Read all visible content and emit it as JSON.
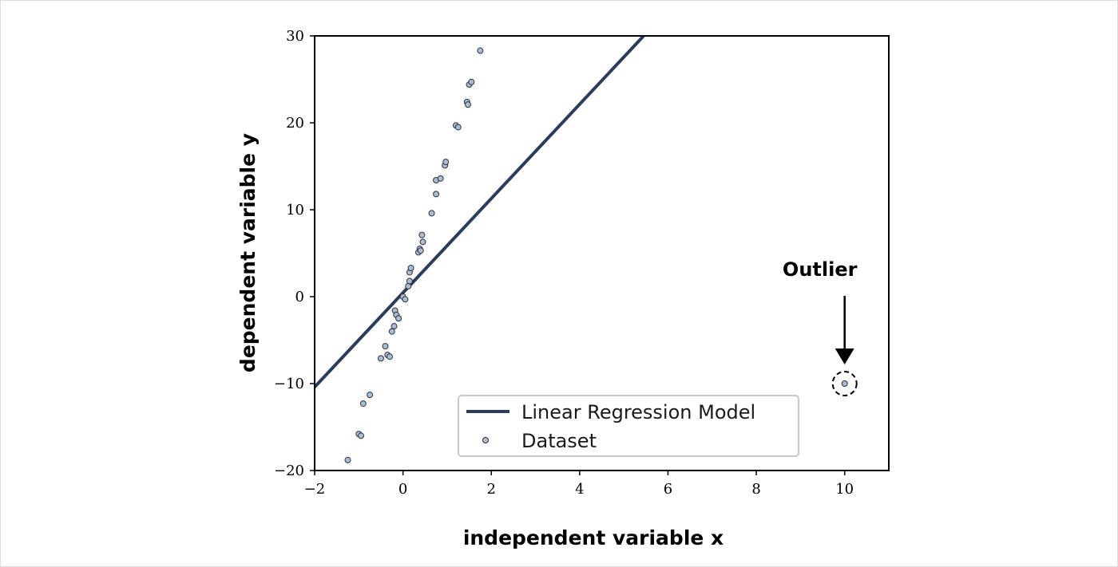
{
  "chart_data": {
    "type": "scatter",
    "xlabel": "independent variable x",
    "ylabel": "dependent variable y",
    "xlim": [
      -2,
      11
    ],
    "ylim": [
      -20,
      30
    ],
    "x_ticks": [
      -2,
      0,
      2,
      4,
      6,
      8,
      10
    ],
    "y_ticks": [
      -20,
      -10,
      0,
      10,
      20,
      30
    ],
    "x_tick_labels": [
      "−2",
      "0",
      "2",
      "4",
      "6",
      "8",
      "10"
    ],
    "y_tick_labels": [
      "−20",
      "−10",
      "0",
      "10",
      "20",
      "30"
    ],
    "grid": false,
    "legend_position": "bottom-center",
    "series": [
      {
        "name": "Linear Regression Model",
        "kind": "line",
        "color": "#2b3d5a",
        "x": [
          -2,
          5.45
        ],
        "y": [
          -10.4,
          30
        ]
      },
      {
        "name": "Dataset",
        "kind": "scatter",
        "color": "#a9bcd6",
        "edge_color": "#333333",
        "x": [
          -1.25,
          -1.0,
          -0.95,
          -0.9,
          -0.75,
          -0.5,
          -0.4,
          -0.35,
          -0.3,
          -0.25,
          -0.2,
          -0.18,
          -0.15,
          -0.1,
          0.0,
          0.05,
          0.12,
          0.15,
          0.15,
          0.18,
          0.35,
          0.38,
          0.4,
          0.43,
          0.45,
          0.65,
          0.75,
          0.75,
          0.85,
          0.95,
          0.97,
          1.2,
          1.25,
          1.45,
          1.47,
          1.5,
          1.55,
          1.75,
          10.0
        ],
        "y": [
          -18.8,
          -15.8,
          -16.0,
          -12.3,
          -11.3,
          -7.1,
          -5.7,
          -6.7,
          -6.9,
          -4.0,
          -3.4,
          -1.6,
          -2.1,
          -2.5,
          0.0,
          -0.3,
          1.2,
          1.8,
          2.8,
          3.3,
          5.1,
          5.5,
          5.3,
          7.1,
          6.3,
          9.6,
          11.8,
          13.4,
          13.6,
          15.1,
          15.5,
          19.7,
          19.5,
          22.4,
          22.1,
          24.4,
          24.7,
          28.3,
          -10.0
        ]
      }
    ],
    "annotations": [
      {
        "text": "Outlier",
        "x": 10,
        "y": -10
      }
    ]
  }
}
